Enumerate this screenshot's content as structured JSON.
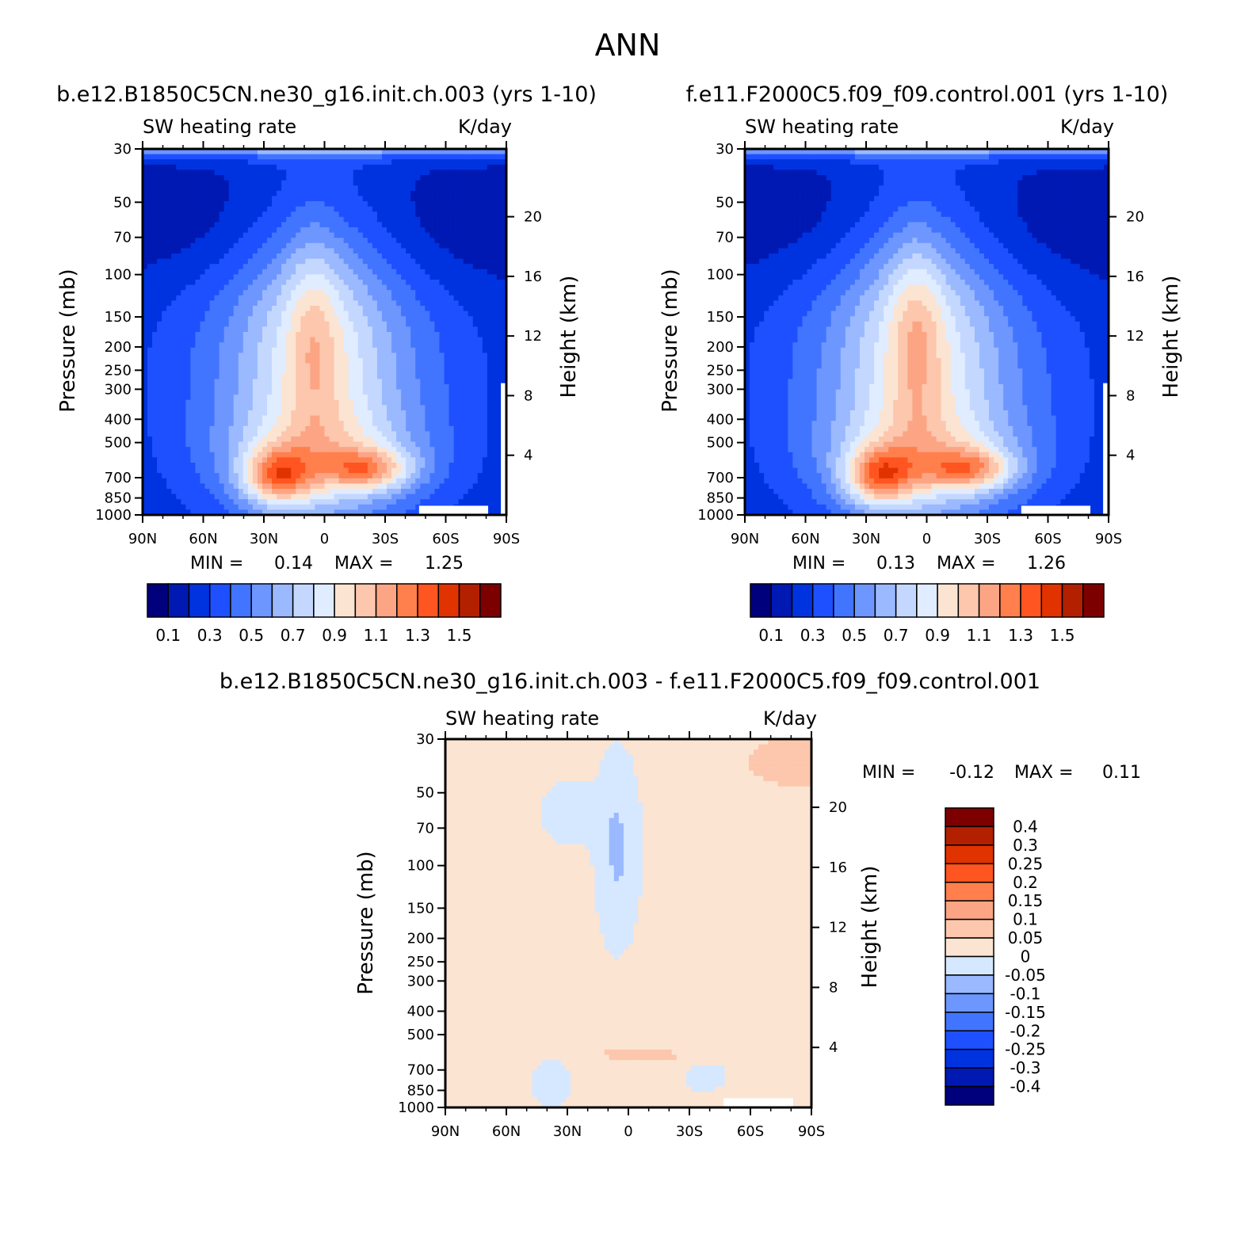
{
  "figure_title": "ANN",
  "colors": {
    "scale_absolute": [
      "#00007d",
      "#0019b3",
      "#0033e0",
      "#1e50ff",
      "#4275ff",
      "#6e96ff",
      "#9ab9ff",
      "#c4d8ff",
      "#e0ecff",
      "#fce4d2",
      "#fcc7ad",
      "#fca585",
      "#ff7f4d",
      "#ff5520",
      "#e03300",
      "#b32000",
      "#7d0000"
    ],
    "scale_difference": [
      "#00007d",
      "#0019b3",
      "#0033e0",
      "#1e50ff",
      "#4275ff",
      "#6e96ff",
      "#9ab9ff",
      "#d6e8ff",
      "#fce4d2",
      "#fcc7ad",
      "#fca585",
      "#ff7f4d",
      "#ff5520",
      "#e03300",
      "#b32000",
      "#7d0000"
    ]
  },
  "chart_data": [
    {
      "type": "heatmap",
      "case_title": "b.e12.B1850C5CN.ne30_g16.init.ch.003 (yrs 1-10)",
      "variable": "SW heating rate",
      "units": "K/day",
      "ylabel": "Pressure (mb)",
      "ylabel_right": "Height (km)",
      "x_ticks": [
        "90N",
        "60N",
        "30N",
        "0",
        "30S",
        "60S",
        "90S"
      ],
      "y_ticks": [
        "30",
        "50",
        "70",
        "100",
        "150",
        "200",
        "250",
        "300",
        "400",
        "500",
        "700",
        "850",
        "1000"
      ],
      "y_ticks_right": [
        "20",
        "16",
        "12",
        "8",
        "4"
      ],
      "ylim": [
        1000,
        30
      ],
      "stats": {
        "min_label": "MIN =",
        "min": "0.14",
        "max_label": "MAX =",
        "max": "1.25"
      },
      "colorbar_labels": [
        "0.1",
        "0.3",
        "0.5",
        "0.7",
        "0.9",
        "1.1",
        "1.3",
        "1.5"
      ],
      "peak_value": 1.25
    },
    {
      "type": "heatmap",
      "case_title": "f.e11.F2000C5.f09_f09.control.001 (yrs 1-10)",
      "variable": "SW heating rate",
      "units": "K/day",
      "ylabel": "Pressure (mb)",
      "ylabel_right": "Height (km)",
      "x_ticks": [
        "90N",
        "60N",
        "30N",
        "0",
        "30S",
        "60S",
        "90S"
      ],
      "y_ticks": [
        "30",
        "50",
        "70",
        "100",
        "150",
        "200",
        "250",
        "300",
        "400",
        "500",
        "700",
        "850",
        "1000"
      ],
      "y_ticks_right": [
        "20",
        "16",
        "12",
        "8",
        "4"
      ],
      "ylim": [
        1000,
        30
      ],
      "stats": {
        "min_label": "MIN =",
        "min": "0.13",
        "max_label": "MAX =",
        "max": "1.26"
      },
      "colorbar_labels": [
        "0.1",
        "0.3",
        "0.5",
        "0.7",
        "0.9",
        "1.1",
        "1.3",
        "1.5"
      ],
      "peak_value": 1.26
    },
    {
      "type": "heatmap",
      "case_title": "b.e12.B1850C5CN.ne30_g16.init.ch.003 - f.e11.F2000C5.f09_f09.control.001",
      "variable": "SW heating rate",
      "units": "K/day",
      "ylabel": "Pressure (mb)",
      "ylabel_right": "Height (km)",
      "x_ticks": [
        "90N",
        "60N",
        "30N",
        "0",
        "30S",
        "60S",
        "90S"
      ],
      "y_ticks": [
        "30",
        "50",
        "70",
        "100",
        "150",
        "200",
        "250",
        "300",
        "400",
        "500",
        "700",
        "850",
        "1000"
      ],
      "y_ticks_right": [
        "20",
        "16",
        "12",
        "8",
        "4"
      ],
      "ylim": [
        1000,
        30
      ],
      "stats": {
        "min_label": "MIN =",
        "min": "-0.12",
        "max_label": "MAX =",
        "max": "0.11"
      },
      "colorbar_labels": [
        "0.4",
        "0.3",
        "0.25",
        "0.2",
        "0.15",
        "0.1",
        "0.05",
        "0",
        "-0.05",
        "-0.1",
        "-0.15",
        "-0.2",
        "-0.25",
        "-0.3",
        "-0.4"
      ]
    }
  ]
}
